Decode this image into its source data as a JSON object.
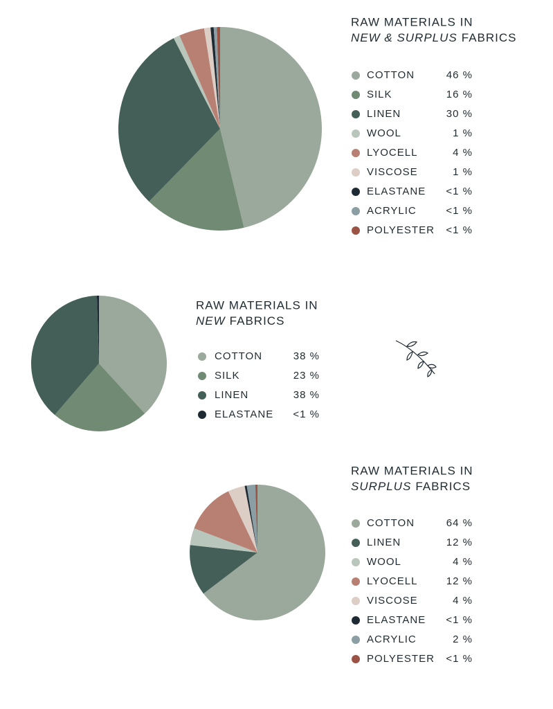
{
  "chart_data": [
    {
      "type": "pie",
      "title": "RAW MATERIALS IN",
      "title_italic": "NEW & SURPLUS",
      "title_suffix": "FABRICS",
      "categories": [
        "COTTON",
        "SILK",
        "LINEN",
        "WOOL",
        "LYOCELL",
        "VISCOSE",
        "ELASTANE",
        "ACRYLIC",
        "POLYESTER"
      ],
      "values": [
        46,
        16,
        30,
        1,
        4,
        1,
        0.5,
        0.5,
        0.5
      ],
      "value_labels": [
        "46 %",
        "16 %",
        "30 %",
        "1 %",
        "4 %",
        "1 %",
        "<1 %",
        "<1 %",
        "<1 %"
      ],
      "colors": [
        "#9aa99c",
        "#718a74",
        "#445f57",
        "#b9c6bc",
        "#b87f73",
        "#dccdc5",
        "#1e2a33",
        "#8a9ea3",
        "#9a5344"
      ]
    },
    {
      "type": "pie",
      "title": "RAW MATERIALS IN",
      "title_italic": "NEW",
      "title_suffix": "FABRICS",
      "categories": [
        "COTTON",
        "SILK",
        "LINEN",
        "ELASTANE"
      ],
      "values": [
        38,
        23,
        38,
        0.5
      ],
      "value_labels": [
        "38 %",
        "23 %",
        "38 %",
        "<1 %"
      ],
      "colors": [
        "#9aa99c",
        "#718a74",
        "#445f57",
        "#1e2a33"
      ]
    },
    {
      "type": "pie",
      "title": "RAW MATERIALS IN",
      "title_italic": "SURPLUS",
      "title_suffix": "FABRICS",
      "categories": [
        "COTTON",
        "LINEN",
        "WOOL",
        "LYOCELL",
        "VISCOSE",
        "ELASTANE",
        "ACRYLIC",
        "POLYESTER"
      ],
      "values": [
        64,
        12,
        4,
        12,
        4,
        0.5,
        2,
        0.5
      ],
      "value_labels": [
        "64 %",
        "12 %",
        "4 %",
        "12 %",
        "4 %",
        "<1 %",
        "2 %",
        "<1 %"
      ],
      "colors": [
        "#9aa99c",
        "#445f57",
        "#b9c6bc",
        "#b87f73",
        "#dccdc5",
        "#1e2a33",
        "#8a9ea3",
        "#9a5344"
      ]
    }
  ]
}
